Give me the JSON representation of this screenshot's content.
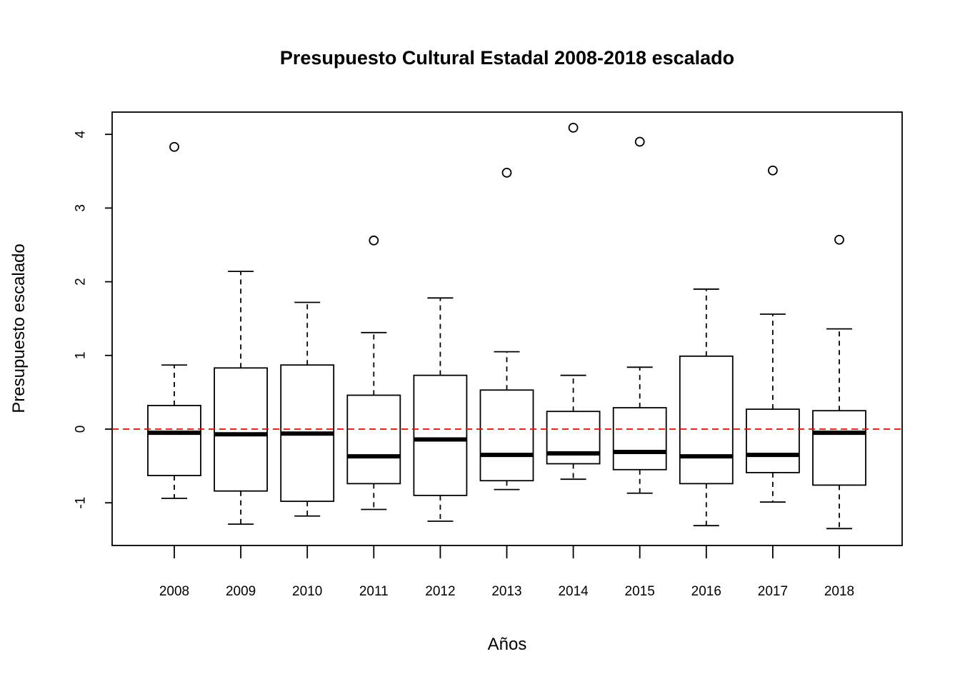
{
  "chart_data": {
    "type": "boxplot",
    "title": "Presupuesto Cultural Estadal 2008-2018 escalado",
    "xlabel": "Años",
    "ylabel": "Presupuesto escalado",
    "categories": [
      "2008",
      "2009",
      "2010",
      "2011",
      "2012",
      "2013",
      "2014",
      "2015",
      "2016",
      "2017",
      "2018"
    ],
    "y_ticks": [
      -1,
      0,
      1,
      2,
      3,
      4
    ],
    "ylim": [
      -1.58,
      4.3
    ],
    "boxes": [
      {
        "category": "2008",
        "whisker_low": -0.94,
        "q1": -0.63,
        "median": -0.05,
        "q3": 0.32,
        "whisker_high": 0.87,
        "outliers": [
          3.83
        ]
      },
      {
        "category": "2009",
        "whisker_low": -1.29,
        "q1": -0.84,
        "median": -0.07,
        "q3": 0.83,
        "whisker_high": 2.14,
        "outliers": []
      },
      {
        "category": "2010",
        "whisker_low": -1.18,
        "q1": -0.98,
        "median": -0.06,
        "q3": 0.87,
        "whisker_high": 1.72,
        "outliers": []
      },
      {
        "category": "2011",
        "whisker_low": -1.09,
        "q1": -0.74,
        "median": -0.37,
        "q3": 0.46,
        "whisker_high": 1.31,
        "outliers": [
          2.56
        ]
      },
      {
        "category": "2012",
        "whisker_low": -1.25,
        "q1": -0.9,
        "median": -0.14,
        "q3": 0.73,
        "whisker_high": 1.78,
        "outliers": []
      },
      {
        "category": "2013",
        "whisker_low": -0.82,
        "q1": -0.7,
        "median": -0.35,
        "q3": 0.53,
        "whisker_high": 1.05,
        "outliers": [
          3.48
        ]
      },
      {
        "category": "2014",
        "whisker_low": -0.68,
        "q1": -0.47,
        "median": -0.33,
        "q3": 0.24,
        "whisker_high": 0.73,
        "outliers": [
          4.09
        ]
      },
      {
        "category": "2015",
        "whisker_low": -0.87,
        "q1": -0.55,
        "median": -0.31,
        "q3": 0.29,
        "whisker_high": 0.84,
        "outliers": [
          3.9
        ]
      },
      {
        "category": "2016",
        "whisker_low": -1.31,
        "q1": -0.74,
        "median": -0.37,
        "q3": 0.99,
        "whisker_high": 1.9,
        "outliers": []
      },
      {
        "category": "2017",
        "whisker_low": -0.99,
        "q1": -0.59,
        "median": -0.35,
        "q3": 0.27,
        "whisker_high": 1.56,
        "outliers": [
          3.51
        ]
      },
      {
        "category": "2018",
        "whisker_low": -1.35,
        "q1": -0.76,
        "median": -0.05,
        "q3": 0.25,
        "whisker_high": 1.36,
        "outliers": [
          2.57
        ]
      }
    ],
    "reference_line": {
      "y": 0,
      "color": "#ff0000",
      "style": "dashed"
    },
    "grid": false,
    "legend": "none"
  }
}
